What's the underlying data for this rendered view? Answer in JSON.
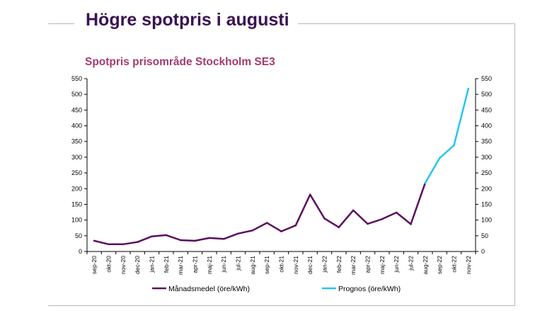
{
  "page": {
    "title": "Högre spotpris i augusti"
  },
  "chart_data": {
    "type": "line",
    "title": "Spotpris prisområde Stockholm SE3",
    "xlabel": "",
    "ylabel": "",
    "ylim": [
      0,
      550
    ],
    "y_ticks": [
      0,
      50,
      100,
      150,
      200,
      250,
      300,
      350,
      400,
      450,
      500,
      550
    ],
    "secondary_ylim": [
      0,
      550
    ],
    "grid": false,
    "legend_position": "bottom",
    "categories": [
      "sep-20",
      "okt-20",
      "nov-20",
      "dec-20",
      "jan-21",
      "feb-21",
      "mar-21",
      "apr-21",
      "maj-21",
      "jun-21",
      "jul-21",
      "aug-21",
      "sep-21",
      "okt-21",
      "nov-21",
      "dec-21",
      "jan-22",
      "feb-22",
      "mar-22",
      "apr-22",
      "maj-22",
      "jun-22",
      "jul-22",
      "aug-22",
      "sep-22",
      "okt-22",
      "nov-22"
    ],
    "series": [
      {
        "name": "Månadsmedel (öre/kWh)",
        "color": "#5b0f5e",
        "values": [
          34,
          23,
          23,
          30,
          48,
          52,
          36,
          34,
          43,
          40,
          57,
          67,
          91,
          64,
          83,
          181,
          105,
          77,
          131,
          88,
          103,
          124,
          87,
          218,
          null,
          null,
          null
        ]
      },
      {
        "name": "Prognos (öre/kWh)",
        "color": "#27c4ef",
        "values": [
          null,
          null,
          null,
          null,
          null,
          null,
          null,
          null,
          null,
          null,
          null,
          null,
          null,
          null,
          null,
          null,
          null,
          null,
          null,
          null,
          null,
          null,
          null,
          218,
          297,
          338,
          518
        ]
      }
    ]
  }
}
